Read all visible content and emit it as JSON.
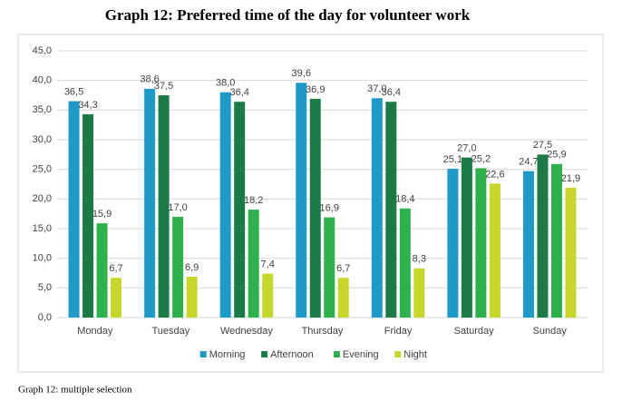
{
  "chart_data": {
    "type": "bar",
    "title": "Graph 12: Preferred time of the day for volunteer work",
    "caption": "Graph 12: multiple selection",
    "categories": [
      "Monday",
      "Tuesday",
      "Wednesday",
      "Thursday",
      "Friday",
      "Saturday",
      "Sunday"
    ],
    "series": [
      {
        "name": "Morning",
        "color": "#1f9ac6",
        "values": [
          36.5,
          38.6,
          38.0,
          39.6,
          37.0,
          25.1,
          24.7
        ],
        "value_labels": [
          "36,5",
          "38,6",
          "38,0",
          "39,6",
          "37,0",
          "25,1",
          "24,7"
        ]
      },
      {
        "name": "Afternoon",
        "color": "#1c7a46",
        "values": [
          34.3,
          37.5,
          36.4,
          36.9,
          36.4,
          27.0,
          27.5
        ],
        "value_labels": [
          "34,3",
          "37,5",
          "36,4",
          "36,9",
          "36,4",
          "27,0",
          "27,5"
        ]
      },
      {
        "name": "Evening",
        "color": "#2cb14c",
        "values": [
          15.9,
          17.0,
          18.2,
          16.9,
          18.4,
          25.2,
          25.9
        ],
        "value_labels": [
          "15,9",
          "17,0",
          "18,2",
          "16,9",
          "18,4",
          "25,2",
          "25,9"
        ]
      },
      {
        "name": "Night",
        "color": "#c6d62b",
        "values": [
          6.7,
          6.9,
          7.4,
          6.7,
          8.3,
          22.6,
          21.9
        ],
        "value_labels": [
          "6,7",
          "6,9",
          "7,4",
          "6,7",
          "8,3",
          "22,6",
          "21,9"
        ]
      }
    ],
    "ylim": [
      0,
      45
    ],
    "yticks": [
      {
        "value": 0,
        "label": "0,0"
      },
      {
        "value": 5,
        "label": "5,0"
      },
      {
        "value": 10,
        "label": "10,0"
      },
      {
        "value": 15,
        "label": "15,0"
      },
      {
        "value": 20,
        "label": "20,0"
      },
      {
        "value": 25,
        "label": "25,0"
      },
      {
        "value": 30,
        "label": "30,0"
      },
      {
        "value": 35,
        "label": "35,0"
      },
      {
        "value": 40,
        "label": "40,0"
      },
      {
        "value": 45,
        "label": "45,0"
      }
    ],
    "grid": true,
    "legend": "bottom"
  }
}
